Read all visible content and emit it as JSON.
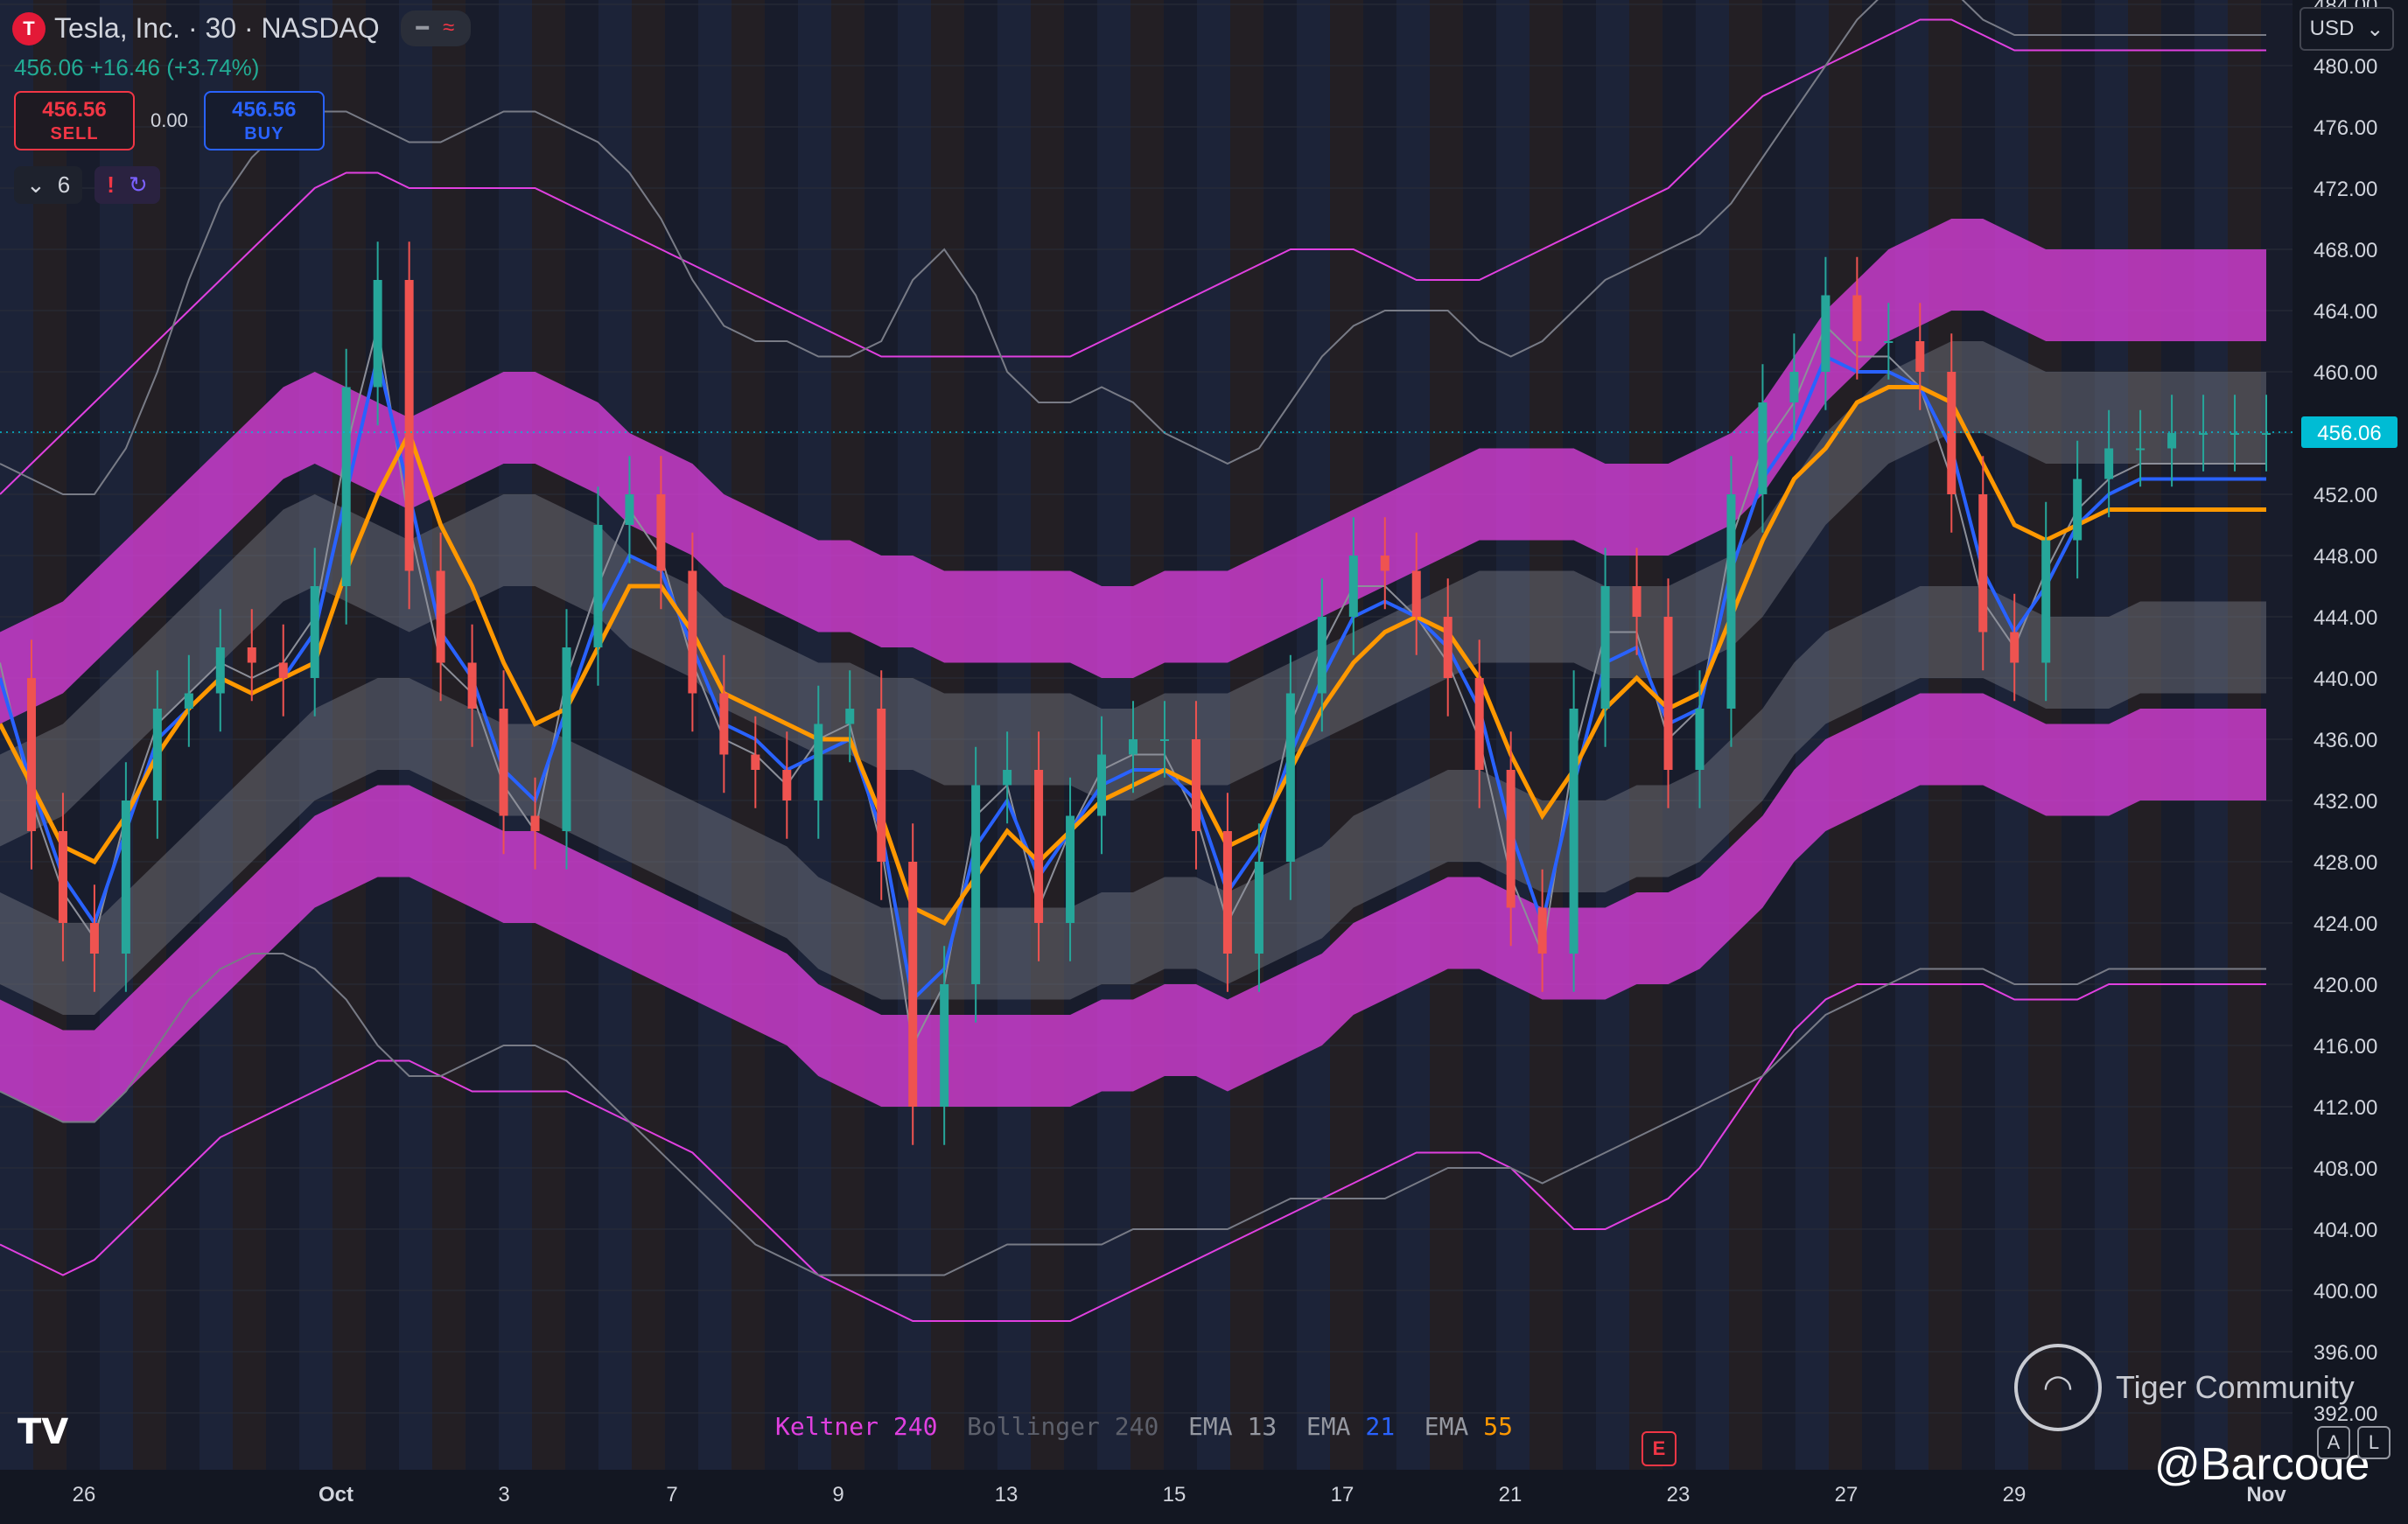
{
  "header": {
    "logo_letter": "T",
    "symbol_line": "Tesla, Inc. · 30 · NASDAQ",
    "quote_line": "456.06 +16.46 (+3.74%)",
    "sell_price": "456.56",
    "sell_label": "SELL",
    "spread": "0.00",
    "buy_price": "456.56",
    "buy_label": "BUY",
    "collapse_count": "6",
    "currency": "USD"
  },
  "legend": [
    {
      "name": "Keltner",
      "value": "240",
      "name_color": "#e040e0",
      "value_color": "#e040e0"
    },
    {
      "name": "Bollinger",
      "value": "240",
      "name_color": "#5d606b",
      "value_color": "#5d606b"
    },
    {
      "name": "EMA",
      "value": "13",
      "name_color": "#9598a1",
      "value_color": "#9598a1"
    },
    {
      "name": "EMA",
      "value": "21",
      "name_color": "#9598a1",
      "value_color": "#2962ff"
    },
    {
      "name": "EMA",
      "value": "55",
      "name_color": "#9598a1",
      "value_color": "#ff9800"
    }
  ],
  "watermark": {
    "community": "Tiger Community",
    "handle": "@Barcode"
  },
  "earnings_marker": "E",
  "scale_buttons": [
    "A",
    "L"
  ],
  "chart_data": {
    "type": "line",
    "title": "Tesla, Inc. · 30 · NASDAQ",
    "ylim": [
      390,
      486
    ],
    "y_ticks": [
      484,
      480,
      476,
      472,
      468,
      464,
      460,
      456,
      452,
      448,
      444,
      440,
      436,
      432,
      428,
      424,
      420,
      416,
      412,
      408,
      404,
      400,
      396,
      392
    ],
    "x_tick_labels": [
      "26",
      "Oct",
      "3",
      "7",
      "9",
      "13",
      "15",
      "17",
      "21",
      "23",
      "27",
      "29",
      "Nov"
    ],
    "last_price": 456.06,
    "last_price_label": "456.06",
    "colors": {
      "keltner": "#e040e0",
      "bollinger": "#787b86",
      "ema13": "#8c8f99",
      "ema21": "#2962ff",
      "ema55": "#ff9800",
      "up": "#26a69a",
      "down": "#ef5350",
      "last": "#00bcd4"
    },
    "x": [
      0,
      1,
      2,
      3,
      4,
      5,
      6,
      7,
      8,
      9,
      10,
      11,
      12,
      13,
      14,
      15,
      16,
      17,
      18,
      19,
      20,
      21,
      22,
      23,
      24,
      25,
      26,
      27,
      28,
      29,
      30,
      31,
      32,
      33,
      34,
      35,
      36,
      37,
      38,
      39,
      40,
      41,
      42,
      43,
      44,
      45,
      46,
      47,
      48,
      49,
      50,
      51,
      52,
      53,
      54,
      55,
      56,
      57,
      58,
      59,
      60,
      61,
      62,
      63,
      64,
      65,
      66,
      67,
      68,
      69,
      70,
      71,
      72
    ],
    "series": [
      {
        "name": "EMA 55",
        "values": [
          437,
          433,
          429,
          428,
          431,
          435,
          438,
          440,
          439,
          440,
          441,
          447,
          452,
          456,
          450,
          446,
          441,
          437,
          438,
          442,
          446,
          446,
          443,
          439,
          438,
          437,
          436,
          436,
          431,
          425,
          424,
          427,
          430,
          428,
          430,
          432,
          433,
          434,
          433,
          429,
          430,
          434,
          438,
          441,
          443,
          444,
          443,
          440,
          435,
          431,
          434,
          438,
          440,
          438,
          439,
          444,
          449,
          453,
          455,
          458,
          459,
          459,
          458,
          454,
          450,
          449,
          450,
          451,
          451,
          451,
          451,
          451,
          451
        ]
      },
      {
        "name": "EMA 21",
        "values": [
          440,
          433,
          427,
          424,
          430,
          436,
          438,
          440,
          439,
          440,
          443,
          452,
          461,
          452,
          443,
          440,
          434,
          432,
          438,
          444,
          448,
          447,
          442,
          437,
          436,
          434,
          435,
          436,
          430,
          419,
          421,
          429,
          432,
          427,
          430,
          433,
          434,
          434,
          432,
          426,
          429,
          435,
          440,
          444,
          445,
          444,
          442,
          438,
          430,
          424,
          433,
          441,
          442,
          437,
          438,
          447,
          453,
          456,
          461,
          460,
          460,
          459,
          455,
          447,
          443,
          446,
          450,
          452,
          453,
          453,
          453,
          453,
          453
        ]
      },
      {
        "name": "EMA 13",
        "values": [
          441,
          432,
          426,
          423,
          431,
          437,
          439,
          441,
          440,
          441,
          444,
          455,
          463,
          450,
          441,
          439,
          433,
          430,
          440,
          446,
          451,
          448,
          441,
          436,
          435,
          433,
          436,
          437,
          429,
          416,
          420,
          431,
          433,
          425,
          430,
          434,
          435,
          435,
          431,
          424,
          428,
          437,
          442,
          446,
          446,
          444,
          441,
          436,
          427,
          422,
          435,
          443,
          443,
          436,
          438,
          449,
          455,
          458,
          463,
          461,
          461,
          459,
          453,
          445,
          442,
          447,
          451,
          453,
          454,
          454,
          454,
          454,
          454
        ]
      },
      {
        "name": "Price",
        "values": [
          440,
          430,
          424,
          422,
          432,
          438,
          439,
          442,
          441,
          440,
          446,
          459,
          466,
          447,
          441,
          438,
          431,
          430,
          442,
          450,
          452,
          447,
          439,
          435,
          434,
          432,
          437,
          438,
          428,
          412,
          420,
          433,
          434,
          424,
          431,
          435,
          436,
          436,
          430,
          422,
          428,
          439,
          444,
          448,
          447,
          444,
          440,
          434,
          425,
          422,
          438,
          446,
          444,
          434,
          438,
          452,
          458,
          460,
          465,
          462,
          462,
          460,
          452,
          443,
          441,
          449,
          453,
          455,
          455,
          456,
          456,
          456,
          456
        ]
      },
      {
        "name": "Keltner basis",
        "values": [
          440,
          441,
          442,
          444,
          446,
          448,
          450,
          452,
          454,
          456,
          457,
          456,
          455,
          454,
          455,
          456,
          457,
          457,
          456,
          455,
          453,
          452,
          451,
          449,
          448,
          447,
          446,
          446,
          445,
          445,
          444,
          444,
          444,
          444,
          444,
          443,
          443,
          444,
          444,
          444,
          445,
          446,
          447,
          448,
          449,
          450,
          451,
          452,
          452,
          452,
          452,
          451,
          451,
          451,
          452,
          453,
          455,
          458,
          461,
          463,
          465,
          466,
          467,
          467,
          466,
          465,
          465,
          465,
          465,
          465,
          465,
          465,
          465
        ]
      },
      {
        "name": "Keltner lower",
        "values": [
          416,
          415,
          414,
          414,
          416,
          418,
          420,
          422,
          424,
          426,
          428,
          429,
          430,
          430,
          429,
          428,
          427,
          427,
          426,
          425,
          424,
          423,
          422,
          421,
          420,
          419,
          417,
          416,
          415,
          415,
          415,
          415,
          415,
          415,
          415,
          416,
          416,
          417,
          417,
          416,
          417,
          418,
          419,
          421,
          422,
          423,
          424,
          424,
          423,
          422,
          422,
          422,
          423,
          423,
          424,
          426,
          428,
          431,
          433,
          434,
          435,
          436,
          436,
          436,
          435,
          434,
          434,
          434,
          435,
          435,
          435,
          435,
          435
        ]
      },
      {
        "name": "Keltner upper outer",
        "values": [
          452,
          454,
          456,
          458,
          460,
          462,
          464,
          466,
          468,
          470,
          472,
          473,
          473,
          472,
          472,
          472,
          472,
          472,
          471,
          470,
          469,
          468,
          467,
          466,
          465,
          464,
          463,
          462,
          461,
          461,
          461,
          461,
          461,
          461,
          461,
          462,
          463,
          464,
          465,
          466,
          467,
          468,
          468,
          468,
          467,
          466,
          466,
          466,
          467,
          468,
          469,
          470,
          471,
          472,
          474,
          476,
          478,
          479,
          480,
          481,
          482,
          483,
          483,
          482,
          481,
          481,
          481,
          481,
          481,
          481,
          481,
          481,
          481
        ]
      },
      {
        "name": "Keltner lower outer",
        "values": [
          403,
          402,
          401,
          402,
          404,
          406,
          408,
          410,
          411,
          412,
          413,
          414,
          415,
          415,
          414,
          413,
          413,
          413,
          413,
          412,
          411,
          410,
          409,
          407,
          405,
          403,
          401,
          400,
          399,
          398,
          398,
          398,
          398,
          398,
          398,
          399,
          400,
          401,
          402,
          403,
          404,
          405,
          406,
          407,
          408,
          409,
          409,
          409,
          408,
          406,
          404,
          404,
          405,
          406,
          408,
          411,
          414,
          417,
          419,
          420,
          420,
          420,
          420,
          420,
          419,
          419,
          419,
          420,
          420,
          420,
          420,
          420,
          420
        ]
      },
      {
        "name": "Bollinger upper",
        "values": [
          454,
          453,
          452,
          452,
          455,
          460,
          466,
          471,
          474,
          476,
          477,
          477,
          476,
          475,
          475,
          476,
          477,
          477,
          476,
          475,
          473,
          470,
          466,
          463,
          462,
          462,
          461,
          461,
          462,
          466,
          468,
          465,
          460,
          458,
          458,
          459,
          458,
          456,
          455,
          454,
          455,
          458,
          461,
          463,
          464,
          464,
          464,
          462,
          461,
          462,
          464,
          466,
          467,
          468,
          469,
          471,
          474,
          477,
          480,
          483,
          485,
          486,
          485,
          483,
          482,
          482,
          482,
          482,
          482,
          482,
          482,
          482,
          482
        ]
      },
      {
        "name": "Bollinger lower",
        "values": [
          413,
          412,
          411,
          411,
          413,
          416,
          419,
          421,
          422,
          422,
          421,
          419,
          416,
          414,
          414,
          415,
          416,
          416,
          415,
          413,
          411,
          409,
          407,
          405,
          403,
          402,
          401,
          401,
          401,
          401,
          401,
          402,
          403,
          403,
          403,
          403,
          404,
          404,
          404,
          404,
          405,
          406,
          406,
          406,
          406,
          407,
          408,
          408,
          408,
          407,
          408,
          409,
          410,
          411,
          412,
          413,
          414,
          416,
          418,
          419,
          420,
          421,
          421,
          421,
          420,
          420,
          420,
          421,
          421,
          421,
          421,
          421,
          421
        ]
      }
    ],
    "legend_position": "bottom"
  }
}
